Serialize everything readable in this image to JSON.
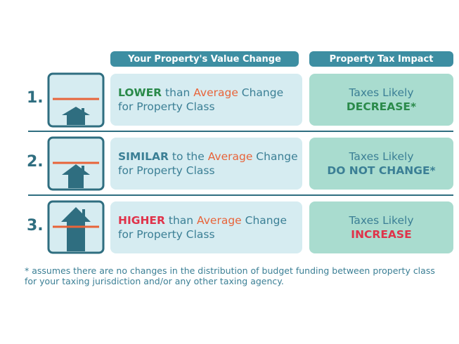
{
  "headers": [
    "Your Property's Value Change",
    "Property Tax Impact"
  ],
  "rows": [
    {
      "number": "1.",
      "change_line1": [
        "LOWER",
        " than ",
        "Average",
        " Change"
      ],
      "change_line2": "for Property Class",
      "tax_line1": "Taxes Likely",
      "tax_line2": "DECREASE*"
    },
    {
      "number": "2.",
      "change_line1": [
        "SIMILAR",
        " to the ",
        "Average",
        " Change"
      ],
      "change_line2": "for Property Class",
      "tax_line1": "Taxes Likely",
      "tax_line2": "DO NOT CHANGE*"
    },
    {
      "number": "3.",
      "change_line1": [
        "HIGHER",
        " than ",
        "Average",
        " Change"
      ],
      "change_line2": "for Property Class",
      "tax_line1": "Taxes Likely",
      "tax_line2": "INCREASE"
    }
  ],
  "footnote": [
    "* assumes there are no changes in the distribution of budget funding between property class",
    "for your taxing jurisdiction and/or any other taxing agency."
  ]
}
